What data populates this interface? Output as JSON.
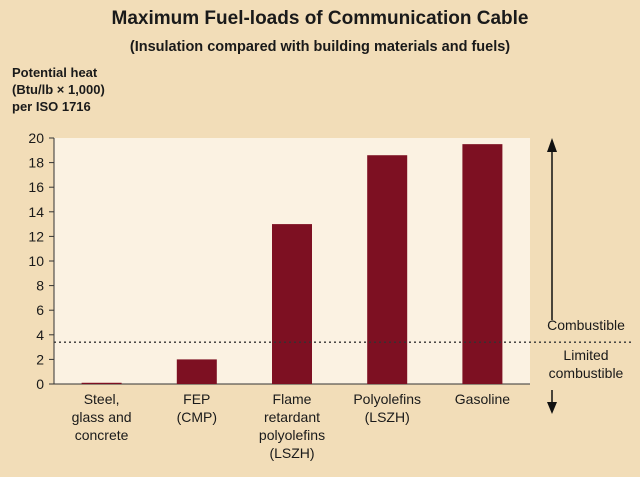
{
  "chart_data": {
    "type": "bar",
    "title": "Maximum Fuel-loads of Communication Cable",
    "subtitle": "(Insulation compared with building materials and fuels)",
    "ylabel": [
      "Potential heat",
      "(Btu/lb × 1,000)",
      "per ISO 1716"
    ],
    "ylim": [
      0,
      20
    ],
    "yticks": [
      0,
      2,
      4,
      6,
      8,
      10,
      12,
      14,
      16,
      18,
      20
    ],
    "categories": [
      [
        "Steel,",
        "glass and",
        "concrete"
      ],
      [
        "FEP",
        "(CMP)"
      ],
      [
        "Flame",
        "retardant",
        "polyolefins",
        "(LSZH)"
      ],
      [
        "Polyolefins",
        "(LSZH)"
      ],
      [
        "Gasoline"
      ]
    ],
    "values": [
      0.1,
      2.0,
      13.0,
      18.6,
      19.5
    ],
    "threshold": {
      "value": 3.4,
      "above_label": "Combustible",
      "below_label": [
        "Limited",
        "combustible"
      ]
    },
    "grid": false,
    "legend": "none",
    "colors": {
      "bar": "#7d1022",
      "plot_background": "#fbf2e2",
      "page_background": "#f2ddb8"
    }
  }
}
